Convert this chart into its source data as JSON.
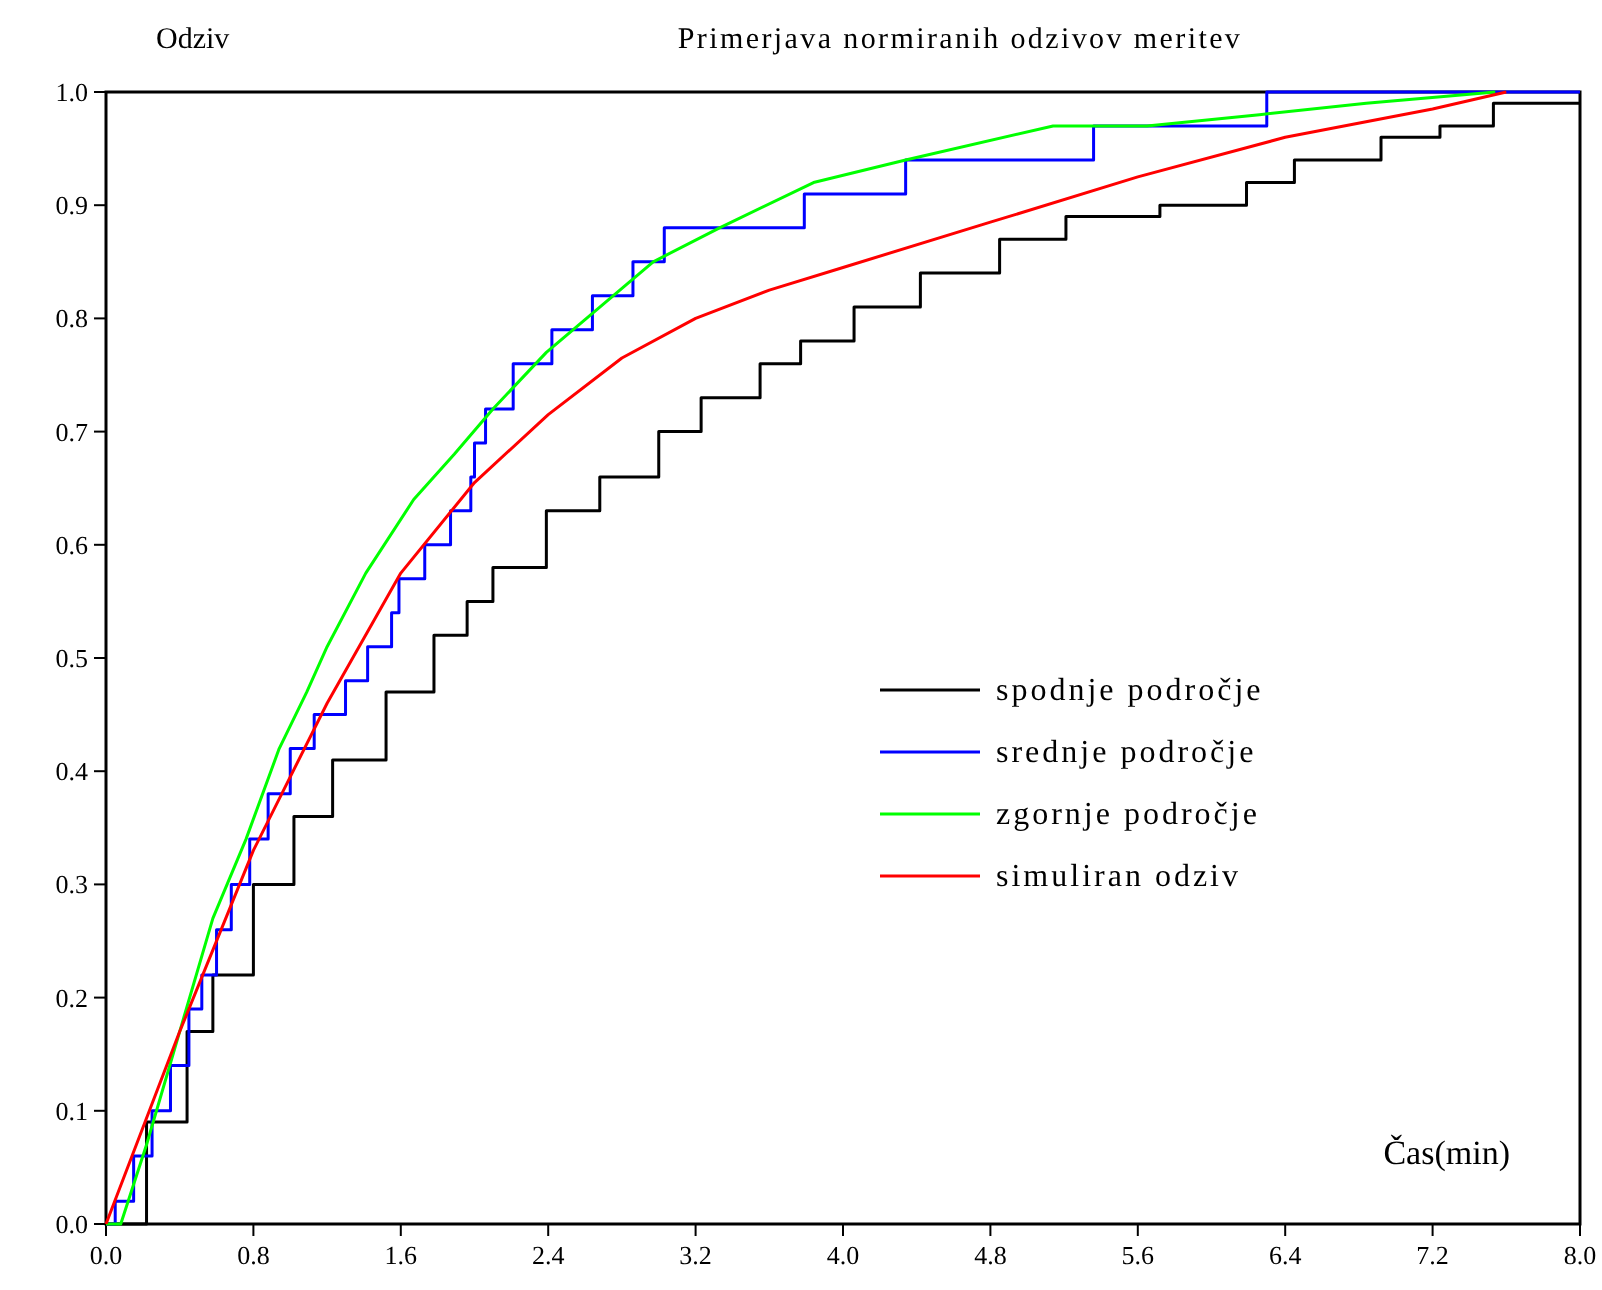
{
  "chart_data": {
    "type": "line",
    "title": "Primerjava normiranih odzivov meritev",
    "ylabel": "Odziv",
    "xlabel": "Čas(min)",
    "xlim": [
      0,
      8
    ],
    "ylim": [
      0,
      1
    ],
    "xticks": [
      {
        "value": 0,
        "label": "0.0"
      },
      {
        "value": 0.8,
        "label": "0.8"
      },
      {
        "value": 1.6,
        "label": "1.6"
      },
      {
        "value": 2.4,
        "label": "2.4"
      },
      {
        "value": 3.2,
        "label": "3.2"
      },
      {
        "value": 4,
        "label": "4.0"
      },
      {
        "value": 4.8,
        "label": "4.8"
      },
      {
        "value": 5.6,
        "label": "5.6"
      },
      {
        "value": 6.4,
        "label": "6.4"
      },
      {
        "value": 7.2,
        "label": "7.2"
      },
      {
        "value": 8,
        "label": "8.0"
      }
    ],
    "yticks": [
      {
        "value": 0,
        "label": "0.0"
      },
      0.1,
      0.2,
      0.3,
      0.4,
      0.5,
      0.6,
      0.7,
      0.8,
      0.9,
      {
        "value": 1,
        "label": "1.0"
      }
    ],
    "grid": false,
    "legend": "right",
    "line_style": "solid",
    "marker": "none",
    "series": [
      {
        "name": "spodnje področje",
        "type": "step",
        "color": "#000000",
        "x": [
          0,
          0.22,
          0.44,
          0.58,
          0.8,
          1.02,
          1.23,
          1.52,
          1.78,
          1.96,
          2.1,
          2.39,
          2.68,
          3.0,
          3.23,
          3.55,
          3.77,
          4.06,
          4.42,
          4.85,
          5.21,
          5.72,
          6.19,
          6.45,
          6.92,
          7.24,
          7.53,
          7.79,
          8.0
        ],
        "values": [
          0,
          0.09,
          0.17,
          0.22,
          0.3,
          0.36,
          0.41,
          0.47,
          0.52,
          0.55,
          0.58,
          0.63,
          0.66,
          0.7,
          0.73,
          0.76,
          0.78,
          0.81,
          0.84,
          0.87,
          0.89,
          0.9,
          0.92,
          0.94,
          0.96,
          0.97,
          0.99,
          0.99,
          0.99
        ]
      },
      {
        "name": "srednje področje",
        "type": "step",
        "color": "#0000ff",
        "x": [
          0,
          0.05,
          0.15,
          0.25,
          0.35,
          0.45,
          0.52,
          0.6,
          0.68,
          0.78,
          0.88,
          1.0,
          1.13,
          1.3,
          1.42,
          1.55,
          1.59,
          1.73,
          1.87,
          1.98,
          2.0,
          2.06,
          2.21,
          2.42,
          2.64,
          2.86,
          3.03,
          3.79,
          4.34,
          5.36,
          6.3,
          8.0
        ],
        "values": [
          0,
          0.02,
          0.06,
          0.1,
          0.14,
          0.19,
          0.22,
          0.26,
          0.3,
          0.34,
          0.38,
          0.42,
          0.45,
          0.48,
          0.51,
          0.54,
          0.57,
          0.6,
          0.63,
          0.66,
          0.69,
          0.72,
          0.76,
          0.79,
          0.82,
          0.85,
          0.88,
          0.91,
          0.94,
          0.97,
          1.0,
          1.0
        ]
      },
      {
        "name": "zgornje področje",
        "color": "#00ff00",
        "x": [
          0,
          0.08,
          0.22,
          0.4,
          0.58,
          0.76,
          0.94,
          1.09,
          1.2,
          1.41,
          1.67,
          1.89,
          2.1,
          2.39,
          2.68,
          2.97,
          3.33,
          3.84,
          4.34,
          5.14,
          5.65,
          6.26,
          6.84,
          7.54
        ],
        "values": [
          0,
          0,
          0.07,
          0.17,
          0.27,
          0.34,
          0.42,
          0.47,
          0.51,
          0.575,
          0.64,
          0.68,
          0.72,
          0.77,
          0.81,
          0.85,
          0.88,
          0.92,
          0.94,
          0.97,
          0.97,
          0.98,
          0.99,
          1.0
        ]
      },
      {
        "name": "simuliran odziv",
        "color": "#ff0000",
        "x": [
          0,
          0.4,
          0.8,
          1.2,
          1.6,
          2.0,
          2.4,
          2.8,
          3.2,
          3.6,
          4.0,
          4.8,
          5.6,
          6.4,
          7.2,
          7.6
        ],
        "values": [
          0,
          0.17,
          0.33,
          0.46,
          0.575,
          0.655,
          0.715,
          0.765,
          0.8,
          0.825,
          0.845,
          0.885,
          0.925,
          0.96,
          0.985,
          1.0
        ]
      }
    ]
  }
}
